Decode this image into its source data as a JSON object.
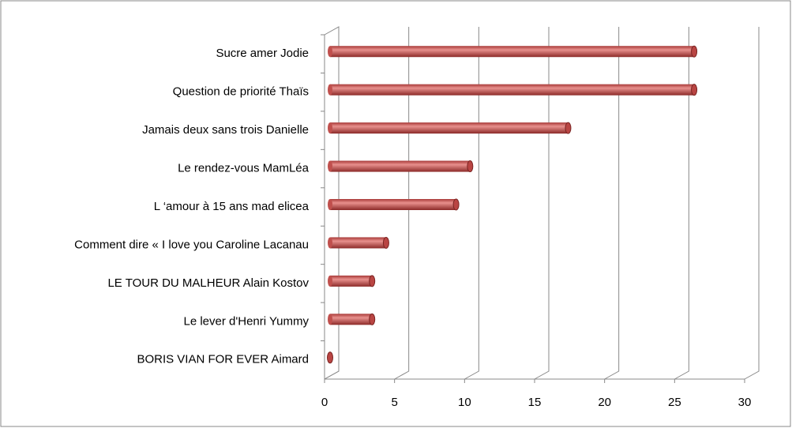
{
  "chart_data": {
    "type": "bar",
    "orientation": "horizontal",
    "categories": [
      "Sucre amer Jodie",
      "Question de priorité Thaïs",
      "Jamais deux sans trois Danielle",
      "Le rendez-vous  MamLéa",
      "L ‘amour à 15 ans mad elicea",
      "Comment dire « I love you Caroline Lacanau",
      "LE TOUR DU MALHEUR Alain Kostov",
      "Le lever d'Henri Yummy",
      "BORIS VIAN FOR EVER Aimard"
    ],
    "values": [
      26,
      26,
      17,
      10,
      9,
      4,
      3,
      3,
      0
    ],
    "color": "#c0504d",
    "xlim": [
      0,
      30
    ],
    "xticks": [
      0,
      5,
      10,
      15,
      20,
      25,
      30
    ],
    "grid": true
  }
}
